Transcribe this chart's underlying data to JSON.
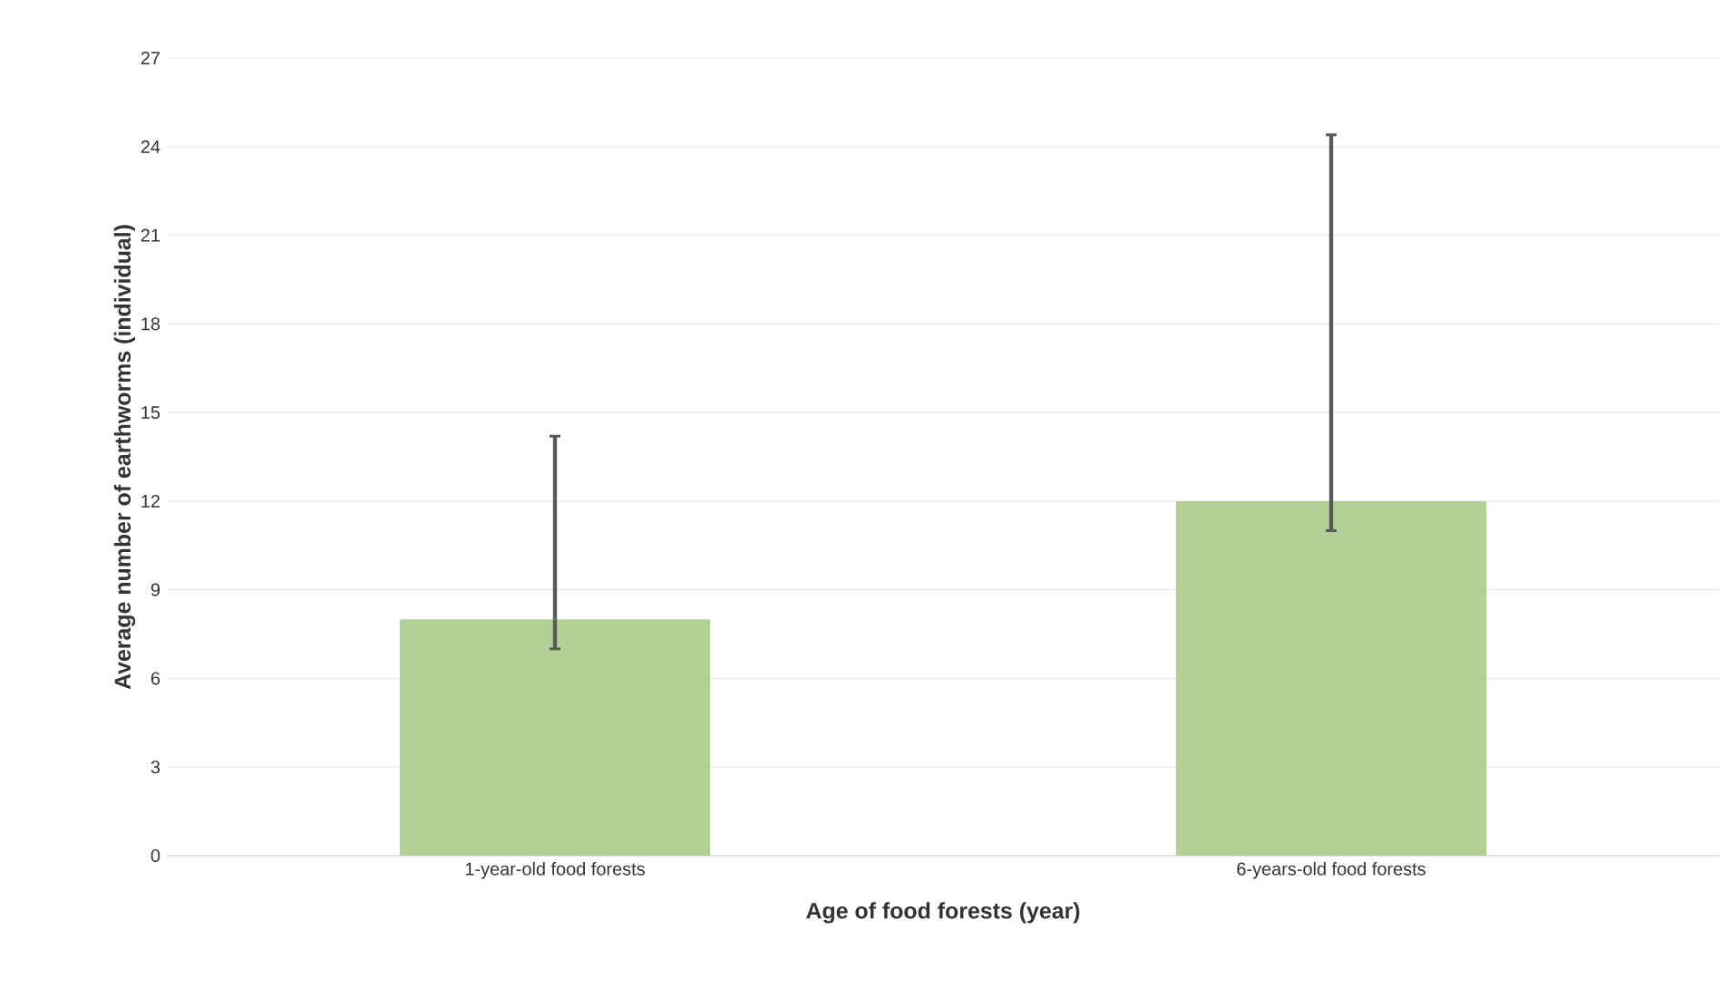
{
  "chart_data": {
    "type": "bar",
    "xlabel": "Age of food forests (year)",
    "ylabel": "Average number of earthworms  (individual)",
    "categories": [
      "1-year-old food forests",
      "6-years-old food forests"
    ],
    "values": [
      8,
      12
    ],
    "errors": [
      [
        7,
        14.2
      ],
      [
        11,
        24.4
      ]
    ],
    "color": "#b0d095",
    "ylim": [
      0,
      27
    ],
    "yticks": [
      0,
      3,
      6,
      9,
      12,
      15,
      18,
      21,
      24,
      27
    ],
    "grid": "y"
  }
}
